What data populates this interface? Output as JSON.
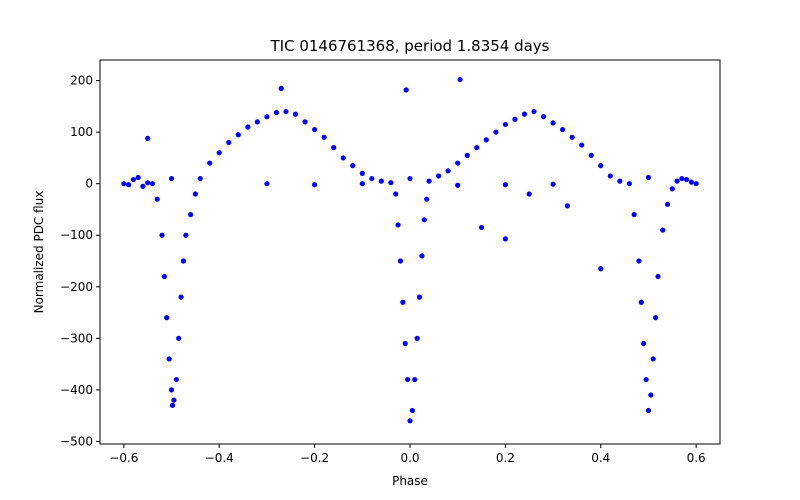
{
  "chart_data": {
    "type": "scatter",
    "title": "TIC 0146761368, period 1.8354 days",
    "xlabel": "Phase",
    "ylabel": "Normalized PDC flux",
    "xlim": [
      -0.65,
      0.65
    ],
    "ylim": [
      -505,
      240
    ],
    "xticks": [
      -0.6,
      -0.4,
      -0.2,
      0.0,
      0.2,
      0.4,
      0.6
    ],
    "xtick_labels": [
      "−0.6",
      "−0.4",
      "−0.2",
      "0.0",
      "0.2",
      "0.4",
      "0.6"
    ],
    "yticks": [
      -500,
      -400,
      -300,
      -200,
      -100,
      0,
      100,
      200
    ],
    "ytick_labels": [
      "−500",
      "−400",
      "−300",
      "−200",
      "−100",
      "0",
      "100",
      "200"
    ],
    "grid": false,
    "marker_color": "#0000ff",
    "series": [
      {
        "marker": "circle",
        "points": [
          [
            -0.6,
            0
          ],
          [
            -0.59,
            -2
          ],
          [
            -0.58,
            8
          ],
          [
            -0.57,
            12
          ],
          [
            -0.56,
            -5
          ],
          [
            -0.55,
            2
          ],
          [
            -0.54,
            0
          ],
          [
            -0.53,
            -30
          ],
          [
            -0.52,
            -100
          ],
          [
            -0.515,
            -180
          ],
          [
            -0.51,
            -260
          ],
          [
            -0.505,
            -340
          ],
          [
            -0.5,
            -400
          ],
          [
            -0.498,
            -430
          ],
          [
            -0.495,
            -420
          ],
          [
            -0.49,
            -380
          ],
          [
            -0.485,
            -300
          ],
          [
            -0.48,
            -220
          ],
          [
            -0.475,
            -150
          ],
          [
            -0.47,
            -100
          ],
          [
            -0.46,
            -60
          ],
          [
            -0.45,
            -20
          ],
          [
            -0.44,
            10
          ],
          [
            -0.42,
            40
          ],
          [
            -0.4,
            60
          ],
          [
            -0.38,
            80
          ],
          [
            -0.36,
            95
          ],
          [
            -0.34,
            110
          ],
          [
            -0.32,
            120
          ],
          [
            -0.3,
            130
          ],
          [
            -0.28,
            138
          ],
          [
            -0.26,
            140
          ],
          [
            -0.24,
            135
          ],
          [
            -0.22,
            120
          ],
          [
            -0.2,
            105
          ],
          [
            -0.18,
            90
          ],
          [
            -0.16,
            70
          ],
          [
            -0.14,
            50
          ],
          [
            -0.12,
            35
          ],
          [
            -0.1,
            20
          ],
          [
            -0.08,
            10
          ],
          [
            -0.06,
            5
          ],
          [
            -0.04,
            2
          ],
          [
            -0.03,
            -20
          ],
          [
            -0.025,
            -80
          ],
          [
            -0.02,
            -150
          ],
          [
            -0.015,
            -230
          ],
          [
            -0.01,
            -310
          ],
          [
            -0.005,
            -380
          ],
          [
            0.0,
            -460
          ],
          [
            0.005,
            -440
          ],
          [
            0.01,
            -380
          ],
          [
            0.015,
            -300
          ],
          [
            0.02,
            -220
          ],
          [
            0.025,
            -140
          ],
          [
            0.03,
            -70
          ],
          [
            0.035,
            -30
          ],
          [
            0.04,
            5
          ],
          [
            0.06,
            15
          ],
          [
            0.08,
            25
          ],
          [
            0.1,
            40
          ],
          [
            0.12,
            55
          ],
          [
            0.14,
            70
          ],
          [
            0.16,
            85
          ],
          [
            0.18,
            100
          ],
          [
            0.2,
            115
          ],
          [
            0.22,
            125
          ],
          [
            0.24,
            135
          ],
          [
            0.26,
            140
          ],
          [
            0.28,
            130
          ],
          [
            0.3,
            118
          ],
          [
            0.32,
            105
          ],
          [
            0.34,
            90
          ],
          [
            0.36,
            75
          ],
          [
            0.38,
            55
          ],
          [
            0.4,
            35
          ],
          [
            0.42,
            15
          ],
          [
            0.44,
            5
          ],
          [
            0.46,
            0
          ],
          [
            0.47,
            -60
          ],
          [
            0.48,
            -150
          ],
          [
            0.485,
            -230
          ],
          [
            0.49,
            -310
          ],
          [
            0.495,
            -380
          ],
          [
            0.5,
            -440
          ],
          [
            0.505,
            -410
          ],
          [
            0.51,
            -340
          ],
          [
            0.515,
            -260
          ],
          [
            0.52,
            -180
          ],
          [
            0.53,
            -90
          ],
          [
            0.54,
            -40
          ],
          [
            0.55,
            -10
          ],
          [
            0.56,
            5
          ],
          [
            0.57,
            10
          ],
          [
            0.58,
            8
          ],
          [
            0.59,
            3
          ],
          [
            0.6,
            0
          ],
          [
            -0.3,
            0
          ],
          [
            -0.2,
            -2
          ],
          [
            -0.1,
            0
          ],
          [
            0.1,
            -3
          ],
          [
            0.2,
            -2
          ],
          [
            0.3,
            -1
          ],
          [
            -0.5,
            10
          ],
          [
            0.5,
            12
          ],
          [
            0.0,
            10
          ],
          [
            -0.27,
            185
          ],
          [
            0.105,
            202
          ],
          [
            -0.008,
            182
          ],
          [
            -0.55,
            88
          ],
          [
            0.4,
            -165
          ],
          [
            0.2,
            -107
          ],
          [
            0.15,
            -85
          ],
          [
            0.33,
            -43
          ],
          [
            0.25,
            -20
          ]
        ]
      }
    ]
  }
}
